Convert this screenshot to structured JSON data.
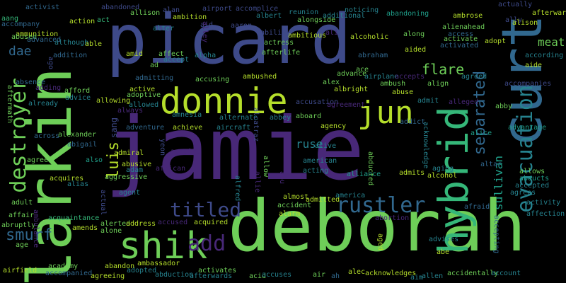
{
  "cloud": {
    "palette": {
      "violet": "#482878",
      "indigo": "#3e4a89",
      "blue": "#31688e",
      "teal": "#26828e",
      "sea": "#1f9e89",
      "green": "#35b779",
      "lime": "#6ece58",
      "yellow": "#b5de2b"
    },
    "words": [
      {
        "text": "jamie",
        "color": "#482878"
      },
      {
        "text": "deborah",
        "color": "#6ece58"
      },
      {
        "text": "picard",
        "color": "#3e4a89"
      },
      {
        "text": "larkin",
        "color": "#6ece58"
      },
      {
        "text": "curt",
        "color": "#31688e"
      },
      {
        "text": "hybrid",
        "color": "#35b779"
      },
      {
        "text": "donnie",
        "color": "#b5de2b"
      },
      {
        "text": "shik",
        "color": "#6ece58"
      },
      {
        "text": "jun",
        "color": "#b5de2b"
      },
      {
        "text": "destroyer",
        "color": "#6ece58"
      },
      {
        "text": "evacuation",
        "color": "#26828e"
      },
      {
        "text": "rustler",
        "color": "#31688e"
      },
      {
        "text": "titled",
        "color": "#3e4a89"
      },
      {
        "text": "separated",
        "color": "#31688e"
      },
      {
        "text": "luis",
        "color": "#b5de2b"
      },
      {
        "text": "smurf",
        "color": "#31688e"
      },
      {
        "text": "flare",
        "color": "#6ece58"
      },
      {
        "text": "meat",
        "color": "#6ece58"
      },
      {
        "text": "dae",
        "color": "#31688e"
      },
      {
        "text": "sullivan",
        "color": "#1f9e89"
      },
      {
        "text": "add",
        "color": "#482878"
      },
      {
        "text": "ruse",
        "color": "#26828e"
      },
      {
        "text": "sang",
        "color": "#3e4a89"
      },
      {
        "text": "aang",
        "color": "#35b779"
      },
      {
        "text": "activist",
        "color": "#31688e"
      },
      {
        "text": "abandoned",
        "color": "#3e4a89"
      },
      {
        "text": "allison",
        "color": "#6ece58"
      },
      {
        "text": "alan",
        "color": "#3e4a89"
      },
      {
        "text": "airport",
        "color": "#3e4a89"
      },
      {
        "text": "accomplice",
        "color": "#3e4a89"
      },
      {
        "text": "alongside",
        "color": "#6ece58"
      },
      {
        "text": "noticing",
        "color": "#26828e"
      },
      {
        "text": "actually",
        "color": "#3e4a89"
      },
      {
        "text": "afterward",
        "color": "#b5de2b"
      },
      {
        "text": "ammunition",
        "color": "#b5de2b"
      },
      {
        "text": "action",
        "color": "#b5de2b"
      },
      {
        "text": "act",
        "color": "#35b779"
      },
      {
        "text": "ambition",
        "color": "#b5de2b"
      },
      {
        "text": "albert",
        "color": "#26828e"
      },
      {
        "text": "reunion",
        "color": "#26828e"
      },
      {
        "text": "additional",
        "color": "#26828e"
      },
      {
        "text": "abandoning",
        "color": "#1f9e89"
      },
      {
        "text": "ambrose",
        "color": "#b5de2b"
      },
      {
        "text": "ally",
        "color": "#3e4a89"
      },
      {
        "text": "accompany",
        "color": "#31688e"
      },
      {
        "text": "aid",
        "color": "#3e4a89"
      },
      {
        "text": "alter",
        "color": "#26828e"
      },
      {
        "text": "alley",
        "color": "#482878"
      },
      {
        "text": "aaron",
        "color": "#3e4a89"
      },
      {
        "text": "alien",
        "color": "#6ece58"
      },
      {
        "text": "ahead",
        "color": "#6ece58"
      },
      {
        "text": "alison",
        "color": "#b5de2b"
      },
      {
        "text": "abused",
        "color": "#6ece58"
      },
      {
        "text": "advanced",
        "color": "#31688e"
      },
      {
        "text": "ambitious",
        "color": "#b5de2b"
      },
      {
        "text": "ability",
        "color": "#3e4a89"
      },
      {
        "text": "ali",
        "color": "#482878"
      },
      {
        "text": "alcoholic",
        "color": "#b5de2b"
      },
      {
        "text": "along",
        "color": "#6ece58"
      },
      {
        "text": "access",
        "color": "#31688e"
      },
      {
        "text": "although",
        "color": "#26828e"
      },
      {
        "text": "able",
        "color": "#b5de2b"
      },
      {
        "text": "actress",
        "color": "#6ece58"
      },
      {
        "text": "activated",
        "color": "#31688e"
      },
      {
        "text": "activate",
        "color": "#6ece58"
      },
      {
        "text": "adopt",
        "color": "#b5de2b"
      },
      {
        "text": "addition",
        "color": "#31688e"
      },
      {
        "text": "amid",
        "color": "#b5de2b"
      },
      {
        "text": "affect",
        "color": "#6ece58"
      },
      {
        "text": "alpha",
        "color": "#26828e"
      },
      {
        "text": "afterlife",
        "color": "#6ece58"
      },
      {
        "text": "abraham",
        "color": "#31688e"
      },
      {
        "text": "aided",
        "color": "#b5de2b"
      },
      {
        "text": "according",
        "color": "#26828e"
      },
      {
        "text": "ago",
        "color": "#3e4a89"
      },
      {
        "text": "ad",
        "color": "#6ece58"
      },
      {
        "text": "accept",
        "color": "#26828e"
      },
      {
        "text": "ace",
        "color": "#6ece58"
      },
      {
        "text": "aide",
        "color": "#b5de2b"
      },
      {
        "text": "absence",
        "color": "#31688e"
      },
      {
        "text": "adding",
        "color": "#482878"
      },
      {
        "text": "admitting",
        "color": "#31688e"
      },
      {
        "text": "accusing",
        "color": "#6ece58"
      },
      {
        "text": "ambushed",
        "color": "#b5de2b"
      },
      {
        "text": "advance",
        "color": "#6ece58"
      },
      {
        "text": "airplane",
        "color": "#26828e"
      },
      {
        "text": "accepts",
        "color": "#482878"
      },
      {
        "text": "agreed",
        "color": "#26828e"
      },
      {
        "text": "ambush",
        "color": "#6ece58"
      },
      {
        "text": "align",
        "color": "#6ece58"
      },
      {
        "text": "accompanies",
        "color": "#3e4a89"
      },
      {
        "text": "aftermath",
        "color": "#6ece58"
      },
      {
        "text": "afford",
        "color": "#6ece58"
      },
      {
        "text": "advice",
        "color": "#26828e"
      },
      {
        "text": "active",
        "color": "#b5de2b"
      },
      {
        "text": "adoptive",
        "color": "#6ece58"
      },
      {
        "text": "allowed",
        "color": "#26828e"
      },
      {
        "text": "alex",
        "color": "#6ece58"
      },
      {
        "text": "albright",
        "color": "#b5de2b"
      },
      {
        "text": "abuse",
        "color": "#b5de2b"
      },
      {
        "text": "admit",
        "color": "#26828e"
      },
      {
        "text": "abby",
        "color": "#6ece58"
      },
      {
        "text": "already",
        "color": "#26828e"
      },
      {
        "text": "allowing",
        "color": "#b5de2b"
      },
      {
        "text": "always",
        "color": "#482878"
      },
      {
        "text": "accusation",
        "color": "#3e4a89"
      },
      {
        "text": "alternate",
        "color": "#26828e"
      },
      {
        "text": "alcatraz",
        "color": "#3e4a89"
      },
      {
        "text": "alleged",
        "color": "#482878"
      },
      {
        "text": "agreement",
        "color": "#482878"
      },
      {
        "text": "abbey",
        "color": "#26828e"
      },
      {
        "text": "aboard",
        "color": "#6ece58"
      },
      {
        "text": "american",
        "color": "#26828e"
      },
      {
        "text": "acknowledge",
        "color": "#26828e"
      },
      {
        "text": "addict",
        "color": "#31688e"
      },
      {
        "text": "advantage",
        "color": "#1f9e89"
      },
      {
        "text": "across",
        "color": "#31688e"
      },
      {
        "text": "alexander",
        "color": "#6ece58"
      },
      {
        "text": "amnesia",
        "color": "#26828e"
      },
      {
        "text": "adventure",
        "color": "#31688e"
      },
      {
        "text": "achieve",
        "color": "#b5de2b"
      },
      {
        "text": "aircraft",
        "color": "#26828e"
      },
      {
        "text": "agency",
        "color": "#b5de2b"
      },
      {
        "text": "alice",
        "color": "#1f9e89"
      },
      {
        "text": "abigail",
        "color": "#31688e"
      },
      {
        "text": "yeon",
        "color": "#3e4a89"
      },
      {
        "text": "abusive",
        "color": "#b5de2b"
      },
      {
        "text": "admiral",
        "color": "#b5de2b"
      },
      {
        "text": "acquire",
        "color": "#482878"
      },
      {
        "text": "alive",
        "color": "#26828e"
      },
      {
        "text": "altar",
        "color": "#31688e"
      },
      {
        "text": "agree",
        "color": "#6ece58"
      },
      {
        "text": "also",
        "color": "#1f9e89"
      },
      {
        "text": "adam",
        "color": "#26828e"
      },
      {
        "text": "african",
        "color": "#482878"
      },
      {
        "text": "allow",
        "color": "#6ece58"
      },
      {
        "text": "abducted",
        "color": "#6ece58"
      },
      {
        "text": "acting",
        "color": "#26828e"
      },
      {
        "text": "aging",
        "color": "#26828e"
      },
      {
        "text": "allows",
        "color": "#6ece58"
      },
      {
        "text": "abducts",
        "color": "#1f9e89"
      },
      {
        "text": "acquires",
        "color": "#b5de2b"
      },
      {
        "text": "aggressive",
        "color": "#6ece58"
      },
      {
        "text": "alias",
        "color": "#26828e"
      },
      {
        "text": "agent",
        "color": "#26828e"
      },
      {
        "text": "alfred",
        "color": "#26828e"
      },
      {
        "text": "allie",
        "color": "#482878"
      },
      {
        "text": "abu",
        "color": "#482878"
      },
      {
        "text": "alliance",
        "color": "#1f9e89"
      },
      {
        "text": "admits",
        "color": "#b5de2b"
      },
      {
        "text": "alcohol",
        "color": "#b5de2b"
      },
      {
        "text": "accepted",
        "color": "#26828e"
      },
      {
        "text": "agrees",
        "color": "#26828e"
      },
      {
        "text": "adult",
        "color": "#6ece58"
      },
      {
        "text": "actual",
        "color": "#3e4a89"
      },
      {
        "text": "almost",
        "color": "#b5de2b"
      },
      {
        "text": "admitted",
        "color": "#b5de2b"
      },
      {
        "text": "america",
        "color": "#26828e"
      },
      {
        "text": "affair",
        "color": "#6ece58"
      },
      {
        "text": "accident",
        "color": "#6ece58"
      },
      {
        "text": "activity",
        "color": "#26828e"
      },
      {
        "text": "afraid",
        "color": "#31688e"
      },
      {
        "text": "abruptly",
        "color": "#6ece58"
      },
      {
        "text": "ambulance",
        "color": "#482878"
      },
      {
        "text": "alarm",
        "color": "#b5de2b"
      },
      {
        "text": "accused",
        "color": "#482878"
      },
      {
        "text": "acquired",
        "color": "#b5de2b"
      },
      {
        "text": "abortion",
        "color": "#482878"
      },
      {
        "text": "affection",
        "color": "#26828e"
      },
      {
        "text": "acquaintance",
        "color": "#35b779"
      },
      {
        "text": "amends",
        "color": "#b5de2b"
      },
      {
        "text": "alerted",
        "color": "#6ece58"
      },
      {
        "text": "address",
        "color": "#b5de2b"
      },
      {
        "text": "alone",
        "color": "#6ece58"
      },
      {
        "text": "accepting",
        "color": "#31688e"
      },
      {
        "text": "age",
        "color": "#6ece58"
      },
      {
        "text": "advises",
        "color": "#26828e"
      },
      {
        "text": "aged",
        "color": "#b5de2b"
      },
      {
        "text": "abe",
        "color": "#b5de2b"
      },
      {
        "text": "airfield",
        "color": "#b5de2b"
      },
      {
        "text": "academy",
        "color": "#6ece58"
      },
      {
        "text": "abandon",
        "color": "#b5de2b"
      },
      {
        "text": "ambassador",
        "color": "#b5de2b"
      },
      {
        "text": "activates",
        "color": "#6ece58"
      },
      {
        "text": "accompanied",
        "color": "#31688e"
      },
      {
        "text": "adopted",
        "color": "#26828e"
      },
      {
        "text": "abduction",
        "color": "#26828e"
      },
      {
        "text": "afterwards",
        "color": "#26828e"
      },
      {
        "text": "acid",
        "color": "#6ece58"
      },
      {
        "text": "accuses",
        "color": "#26828e"
      },
      {
        "text": "air",
        "color": "#6ece58"
      },
      {
        "text": "ah",
        "color": "#31688e"
      },
      {
        "text": "alec",
        "color": "#b5de2b"
      },
      {
        "text": "acknowledges",
        "color": "#b5de2b"
      },
      {
        "text": "aim",
        "color": "#26828e"
      },
      {
        "text": "allen",
        "color": "#26828e"
      },
      {
        "text": "accidentally",
        "color": "#6ece58"
      },
      {
        "text": "account",
        "color": "#26828e"
      },
      {
        "text": "agreeing",
        "color": "#b5de2b"
      }
    ]
  }
}
